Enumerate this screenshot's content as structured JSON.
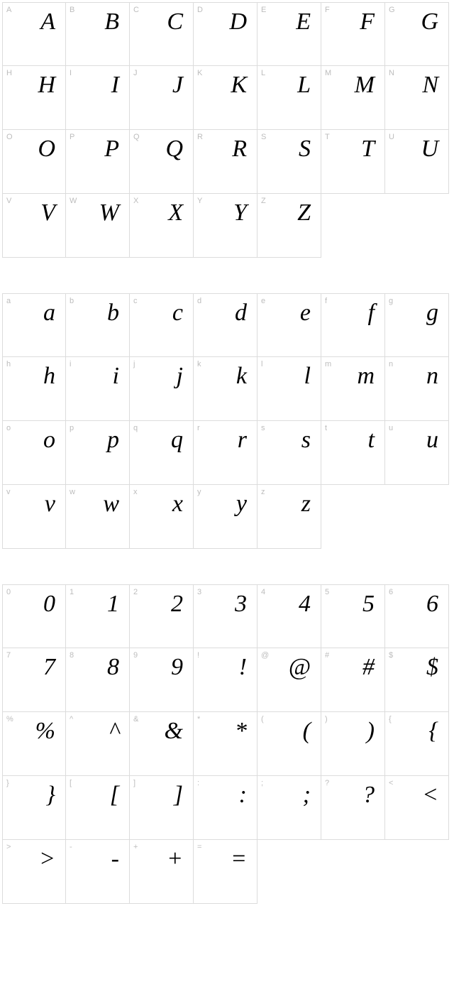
{
  "layout": {
    "columns": 7,
    "cell_size": 90,
    "grid_border_color": "#dcdcdc",
    "background_color": "#ffffff",
    "label_color": "#bdbdbd",
    "label_fontsize": 11,
    "glyph_fontsize": 34,
    "glyph_color": "#000000",
    "glyph_font_family": "Times New Roman serif italic",
    "block_gap": 50
  },
  "blocks": [
    {
      "name": "uppercase",
      "full_rows": 3,
      "last_row_cells": 5,
      "cells": [
        {
          "label": "A",
          "glyph": "A"
        },
        {
          "label": "B",
          "glyph": "B"
        },
        {
          "label": "C",
          "glyph": "C"
        },
        {
          "label": "D",
          "glyph": "D"
        },
        {
          "label": "E",
          "glyph": "E"
        },
        {
          "label": "F",
          "glyph": "F"
        },
        {
          "label": "G",
          "glyph": "G"
        },
        {
          "label": "H",
          "glyph": "H"
        },
        {
          "label": "I",
          "glyph": "I"
        },
        {
          "label": "J",
          "glyph": "J"
        },
        {
          "label": "K",
          "glyph": "K"
        },
        {
          "label": "L",
          "glyph": "L"
        },
        {
          "label": "M",
          "glyph": "M"
        },
        {
          "label": "N",
          "glyph": "N"
        },
        {
          "label": "O",
          "glyph": "O"
        },
        {
          "label": "P",
          "glyph": "P"
        },
        {
          "label": "Q",
          "glyph": "Q"
        },
        {
          "label": "R",
          "glyph": "R"
        },
        {
          "label": "S",
          "glyph": "S"
        },
        {
          "label": "T",
          "glyph": "T"
        },
        {
          "label": "U",
          "glyph": "U"
        },
        {
          "label": "V",
          "glyph": "V"
        },
        {
          "label": "W",
          "glyph": "W"
        },
        {
          "label": "X",
          "glyph": "X"
        },
        {
          "label": "Y",
          "glyph": "Y"
        },
        {
          "label": "Z",
          "glyph": "Z"
        }
      ]
    },
    {
      "name": "lowercase",
      "full_rows": 3,
      "last_row_cells": 5,
      "cells": [
        {
          "label": "a",
          "glyph": "a"
        },
        {
          "label": "b",
          "glyph": "b"
        },
        {
          "label": "c",
          "glyph": "c"
        },
        {
          "label": "d",
          "glyph": "d"
        },
        {
          "label": "e",
          "glyph": "e"
        },
        {
          "label": "f",
          "glyph": "f"
        },
        {
          "label": "g",
          "glyph": "g"
        },
        {
          "label": "h",
          "glyph": "h"
        },
        {
          "label": "i",
          "glyph": "i"
        },
        {
          "label": "j",
          "glyph": "j"
        },
        {
          "label": "k",
          "glyph": "k"
        },
        {
          "label": "l",
          "glyph": "l"
        },
        {
          "label": "m",
          "glyph": "m"
        },
        {
          "label": "n",
          "glyph": "n"
        },
        {
          "label": "o",
          "glyph": "o"
        },
        {
          "label": "p",
          "glyph": "p"
        },
        {
          "label": "q",
          "glyph": "q"
        },
        {
          "label": "r",
          "glyph": "r"
        },
        {
          "label": "s",
          "glyph": "s"
        },
        {
          "label": "t",
          "glyph": "t"
        },
        {
          "label": "u",
          "glyph": "u"
        },
        {
          "label": "v",
          "glyph": "v"
        },
        {
          "label": "w",
          "glyph": "w"
        },
        {
          "label": "x",
          "glyph": "x"
        },
        {
          "label": "y",
          "glyph": "y"
        },
        {
          "label": "z",
          "glyph": "z"
        }
      ]
    },
    {
      "name": "symbols",
      "full_rows": 4,
      "last_row_cells": 4,
      "cells": [
        {
          "label": "0",
          "glyph": "0"
        },
        {
          "label": "1",
          "glyph": "1"
        },
        {
          "label": "2",
          "glyph": "2"
        },
        {
          "label": "3",
          "glyph": "3"
        },
        {
          "label": "4",
          "glyph": "4"
        },
        {
          "label": "5",
          "glyph": "5"
        },
        {
          "label": "6",
          "glyph": "6"
        },
        {
          "label": "7",
          "glyph": "7"
        },
        {
          "label": "8",
          "glyph": "8"
        },
        {
          "label": "9",
          "glyph": "9"
        },
        {
          "label": "!",
          "glyph": "!"
        },
        {
          "label": "@",
          "glyph": "@"
        },
        {
          "label": "#",
          "glyph": "#"
        },
        {
          "label": "$",
          "glyph": "$"
        },
        {
          "label": "%",
          "glyph": "%"
        },
        {
          "label": "^",
          "glyph": "^"
        },
        {
          "label": "&",
          "glyph": "&"
        },
        {
          "label": "*",
          "glyph": "*"
        },
        {
          "label": "(",
          "glyph": "("
        },
        {
          "label": ")",
          "glyph": ")"
        },
        {
          "label": "{",
          "glyph": "{"
        },
        {
          "label": "}",
          "glyph": "}"
        },
        {
          "label": "[",
          "glyph": "["
        },
        {
          "label": "]",
          "glyph": "]"
        },
        {
          "label": ":",
          "glyph": ":"
        },
        {
          "label": ";",
          "glyph": ";"
        },
        {
          "label": "?",
          "glyph": "?"
        },
        {
          "label": "<",
          "glyph": "<"
        },
        {
          "label": ">",
          "glyph": ">"
        },
        {
          "label": "-",
          "glyph": "-"
        },
        {
          "label": "+",
          "glyph": "+"
        },
        {
          "label": "=",
          "glyph": "="
        }
      ]
    }
  ]
}
